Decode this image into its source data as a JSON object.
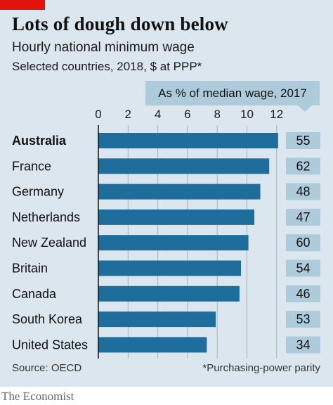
{
  "header": {
    "title": "Lots of dough down below",
    "subtitle": "Hourly national minimum wage",
    "note": "Selected countries, 2018, $ at PPP*"
  },
  "side_header": "As % of median wage, 2017",
  "source": "Source: OECD",
  "footnote": "*Purchasing-power parity",
  "logo": "The Economist",
  "colors": {
    "background": "#dbe6ef",
    "bar": "#1f6d9c",
    "side_box": "#aecbdc",
    "accent": "#e3120b"
  },
  "chart_data": {
    "type": "bar",
    "orientation": "horizontal",
    "categories": [
      "Australia",
      "France",
      "Germany",
      "Netherlands",
      "New Zealand",
      "Britain",
      "Canada",
      "South Korea",
      "United States"
    ],
    "highlight": "Australia",
    "values": [
      12.1,
      11.5,
      10.9,
      10.5,
      10.1,
      9.6,
      9.5,
      7.9,
      7.3
    ],
    "ticks": [
      0,
      2,
      4,
      6,
      8,
      10,
      12
    ],
    "xlim": [
      0,
      12.2
    ],
    "side_values": [
      55,
      62,
      48,
      47,
      60,
      54,
      46,
      53,
      34
    ],
    "grid": true
  }
}
